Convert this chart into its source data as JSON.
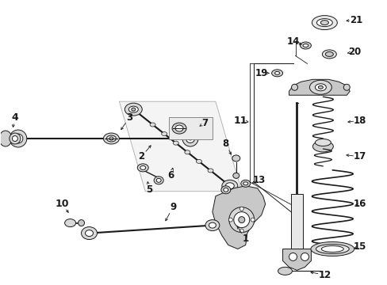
{
  "background_color": "#ffffff",
  "line_color": "#1a1a1a",
  "figure_width": 4.89,
  "figure_height": 3.6,
  "dpi": 100
}
